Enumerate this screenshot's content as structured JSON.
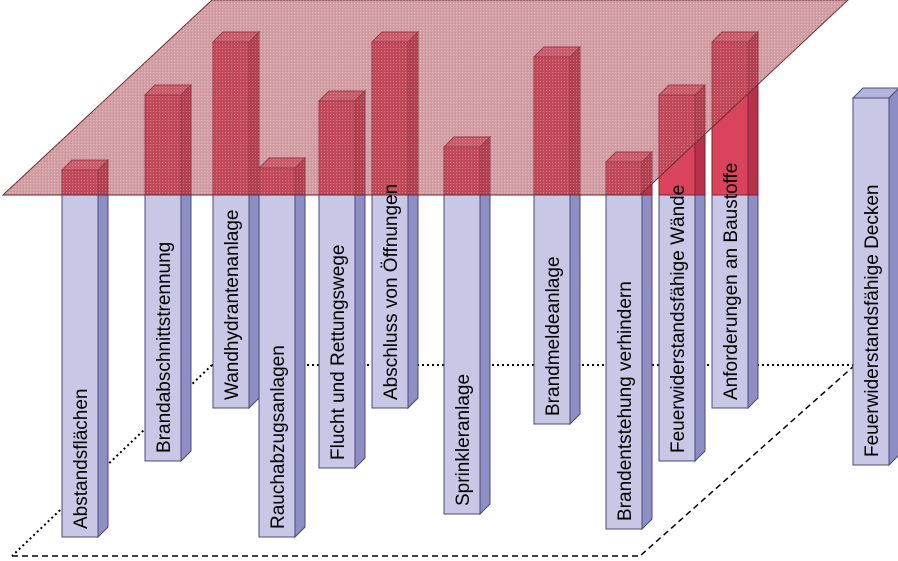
{
  "colors": {
    "pillar_front": "#c8c8e6",
    "pillar_side": "#8e8ec4",
    "pillar_top": "#b4b4dc",
    "pillar_outline": "#4a4a78",
    "red_front": "#d9445c",
    "red_side": "#b8304a",
    "red_top": "#e86c80",
    "plane_fill": "#b0505a",
    "label_color": "#000000"
  },
  "pillars": [
    {
      "id": "abstandsflaechen",
      "label": "Abstandsflächen",
      "covered": true
    },
    {
      "id": "brandabschnittstrennung",
      "label": "Brandabschnittstrennung",
      "covered": true
    },
    {
      "id": "wandhydrantenanlage",
      "label": "Wandhydrantenanlage",
      "covered": true
    },
    {
      "id": "rauchabzugsanlagen",
      "label": "Rauchabzugsanlagen",
      "covered": true
    },
    {
      "id": "flucht-rettungswege",
      "label": "Flucht und Rettungswege",
      "covered": true
    },
    {
      "id": "abschluss-oeffnungen",
      "label": "Abschluss von Öffnungen",
      "covered": true
    },
    {
      "id": "sprinkleranlage",
      "label": "Sprinkleranlage",
      "covered": true
    },
    {
      "id": "brandmeldeanlage",
      "label": "Brandmeldeanlage",
      "covered": true
    },
    {
      "id": "brandentstehung-verhindern",
      "label": "Brandentstehung verhindern",
      "covered": true
    },
    {
      "id": "feuerwiderstand-waende",
      "label": "Feuerwiderstandsfähige Wände",
      "covered": true
    },
    {
      "id": "anforderungen-baustoffe",
      "label": "Anforderungen an Baustoffe",
      "covered": true
    },
    {
      "id": "feuerwiderstand-decken",
      "label": "Feuerwiderstandsfähige Decken",
      "covered": false
    }
  ]
}
